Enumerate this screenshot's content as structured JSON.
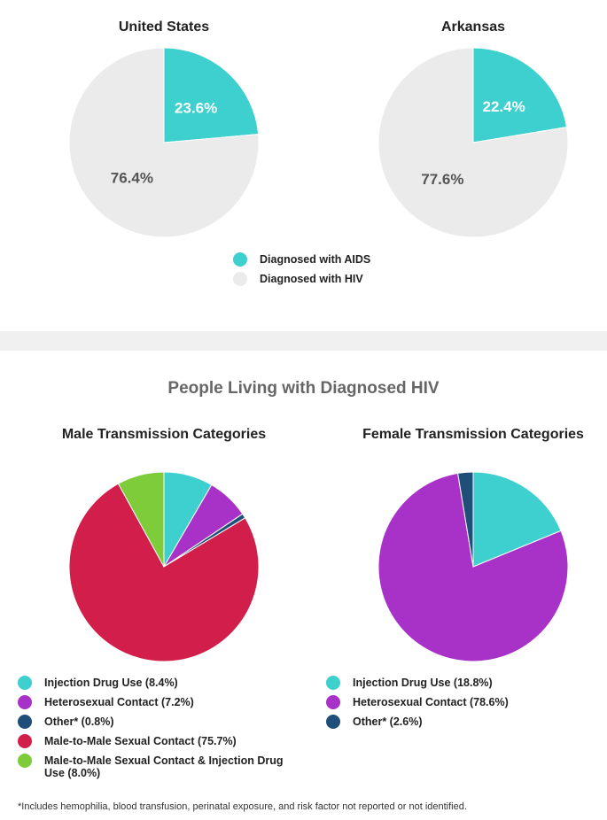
{
  "colors": {
    "aids": "#3ecfcf",
    "hiv": "#ebebeb",
    "injection": "#3ecfcf",
    "heterosexual": "#a832c8",
    "other": "#1f4e79",
    "msm": "#d21e4b",
    "msm_idu": "#7fcc3a"
  },
  "section_title": "People Living with Diagnosed HIV",
  "footnote": "*Includes hemophilia, blood transfusion, perinatal exposure, and risk factor not reported or not identified.",
  "legend_top": [
    {
      "label": "Diagnosed with AIDS",
      "color": "#3ecfcf"
    },
    {
      "label": "Diagnosed with HIV",
      "color": "#ebebeb"
    }
  ],
  "chart_data": [
    {
      "type": "pie",
      "title": "United States",
      "slices": [
        {
          "label": "Diagnosed with AIDS",
          "value": 23.6,
          "display": "23.6%",
          "color": "#3ecfcf"
        },
        {
          "label": "Diagnosed with HIV",
          "value": 76.4,
          "display": "76.4%",
          "color": "#ebebeb"
        }
      ]
    },
    {
      "type": "pie",
      "title": "Arkansas",
      "slices": [
        {
          "label": "Diagnosed with AIDS",
          "value": 22.4,
          "display": "22.4%",
          "color": "#3ecfcf"
        },
        {
          "label": "Diagnosed with HIV",
          "value": 77.6,
          "display": "77.6%",
          "color": "#ebebeb"
        }
      ]
    },
    {
      "type": "pie",
      "title": "Male Transmission Categories",
      "slices": [
        {
          "label": "Injection Drug Use (8.4%)",
          "value": 8.4,
          "color": "#3ecfcf"
        },
        {
          "label": "Heterosexual Contact (7.2%)",
          "value": 7.2,
          "color": "#a832c8"
        },
        {
          "label": "Other* (0.8%)",
          "value": 0.8,
          "color": "#1f4e79"
        },
        {
          "label": "Male-to-Male Sexual Contact (75.7%)",
          "value": 75.7,
          "color": "#d21e4b"
        },
        {
          "label": "Male-to-Male Sexual Contact & Injection Drug Use (8.0%)",
          "value": 8.0,
          "color": "#7fcc3a"
        }
      ]
    },
    {
      "type": "pie",
      "title": "Female Transmission Categories",
      "slices": [
        {
          "label": "Injection Drug Use (18.8%)",
          "value": 18.8,
          "color": "#3ecfcf"
        },
        {
          "label": "Heterosexual Contact (78.6%)",
          "value": 78.6,
          "color": "#a832c8"
        },
        {
          "label": "Other* (2.6%)",
          "value": 2.6,
          "color": "#1f4e79"
        }
      ]
    }
  ]
}
